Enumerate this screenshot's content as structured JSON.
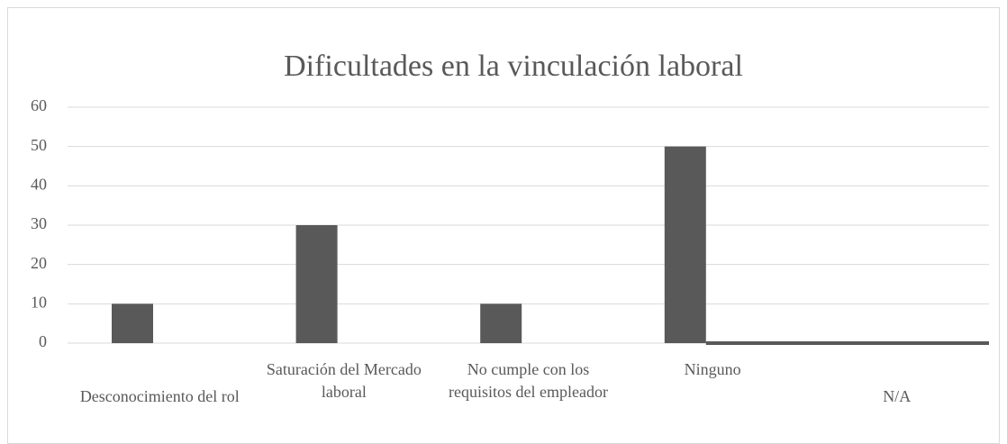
{
  "chart_data": {
    "type": "bar",
    "title": "Dificultades en la vinculación laboral",
    "categories": [
      "Desconocimiento del rol",
      "Saturación del Mercado laboral",
      "No cumple con los requisitos del empleador",
      "Ninguno",
      "N/A"
    ],
    "values": [
      10,
      30,
      10,
      50,
      0
    ],
    "color": "#595959",
    "ylim": [
      0,
      60
    ],
    "yticks": [
      0,
      10,
      20,
      30,
      40,
      50,
      60
    ],
    "grid": true
  }
}
